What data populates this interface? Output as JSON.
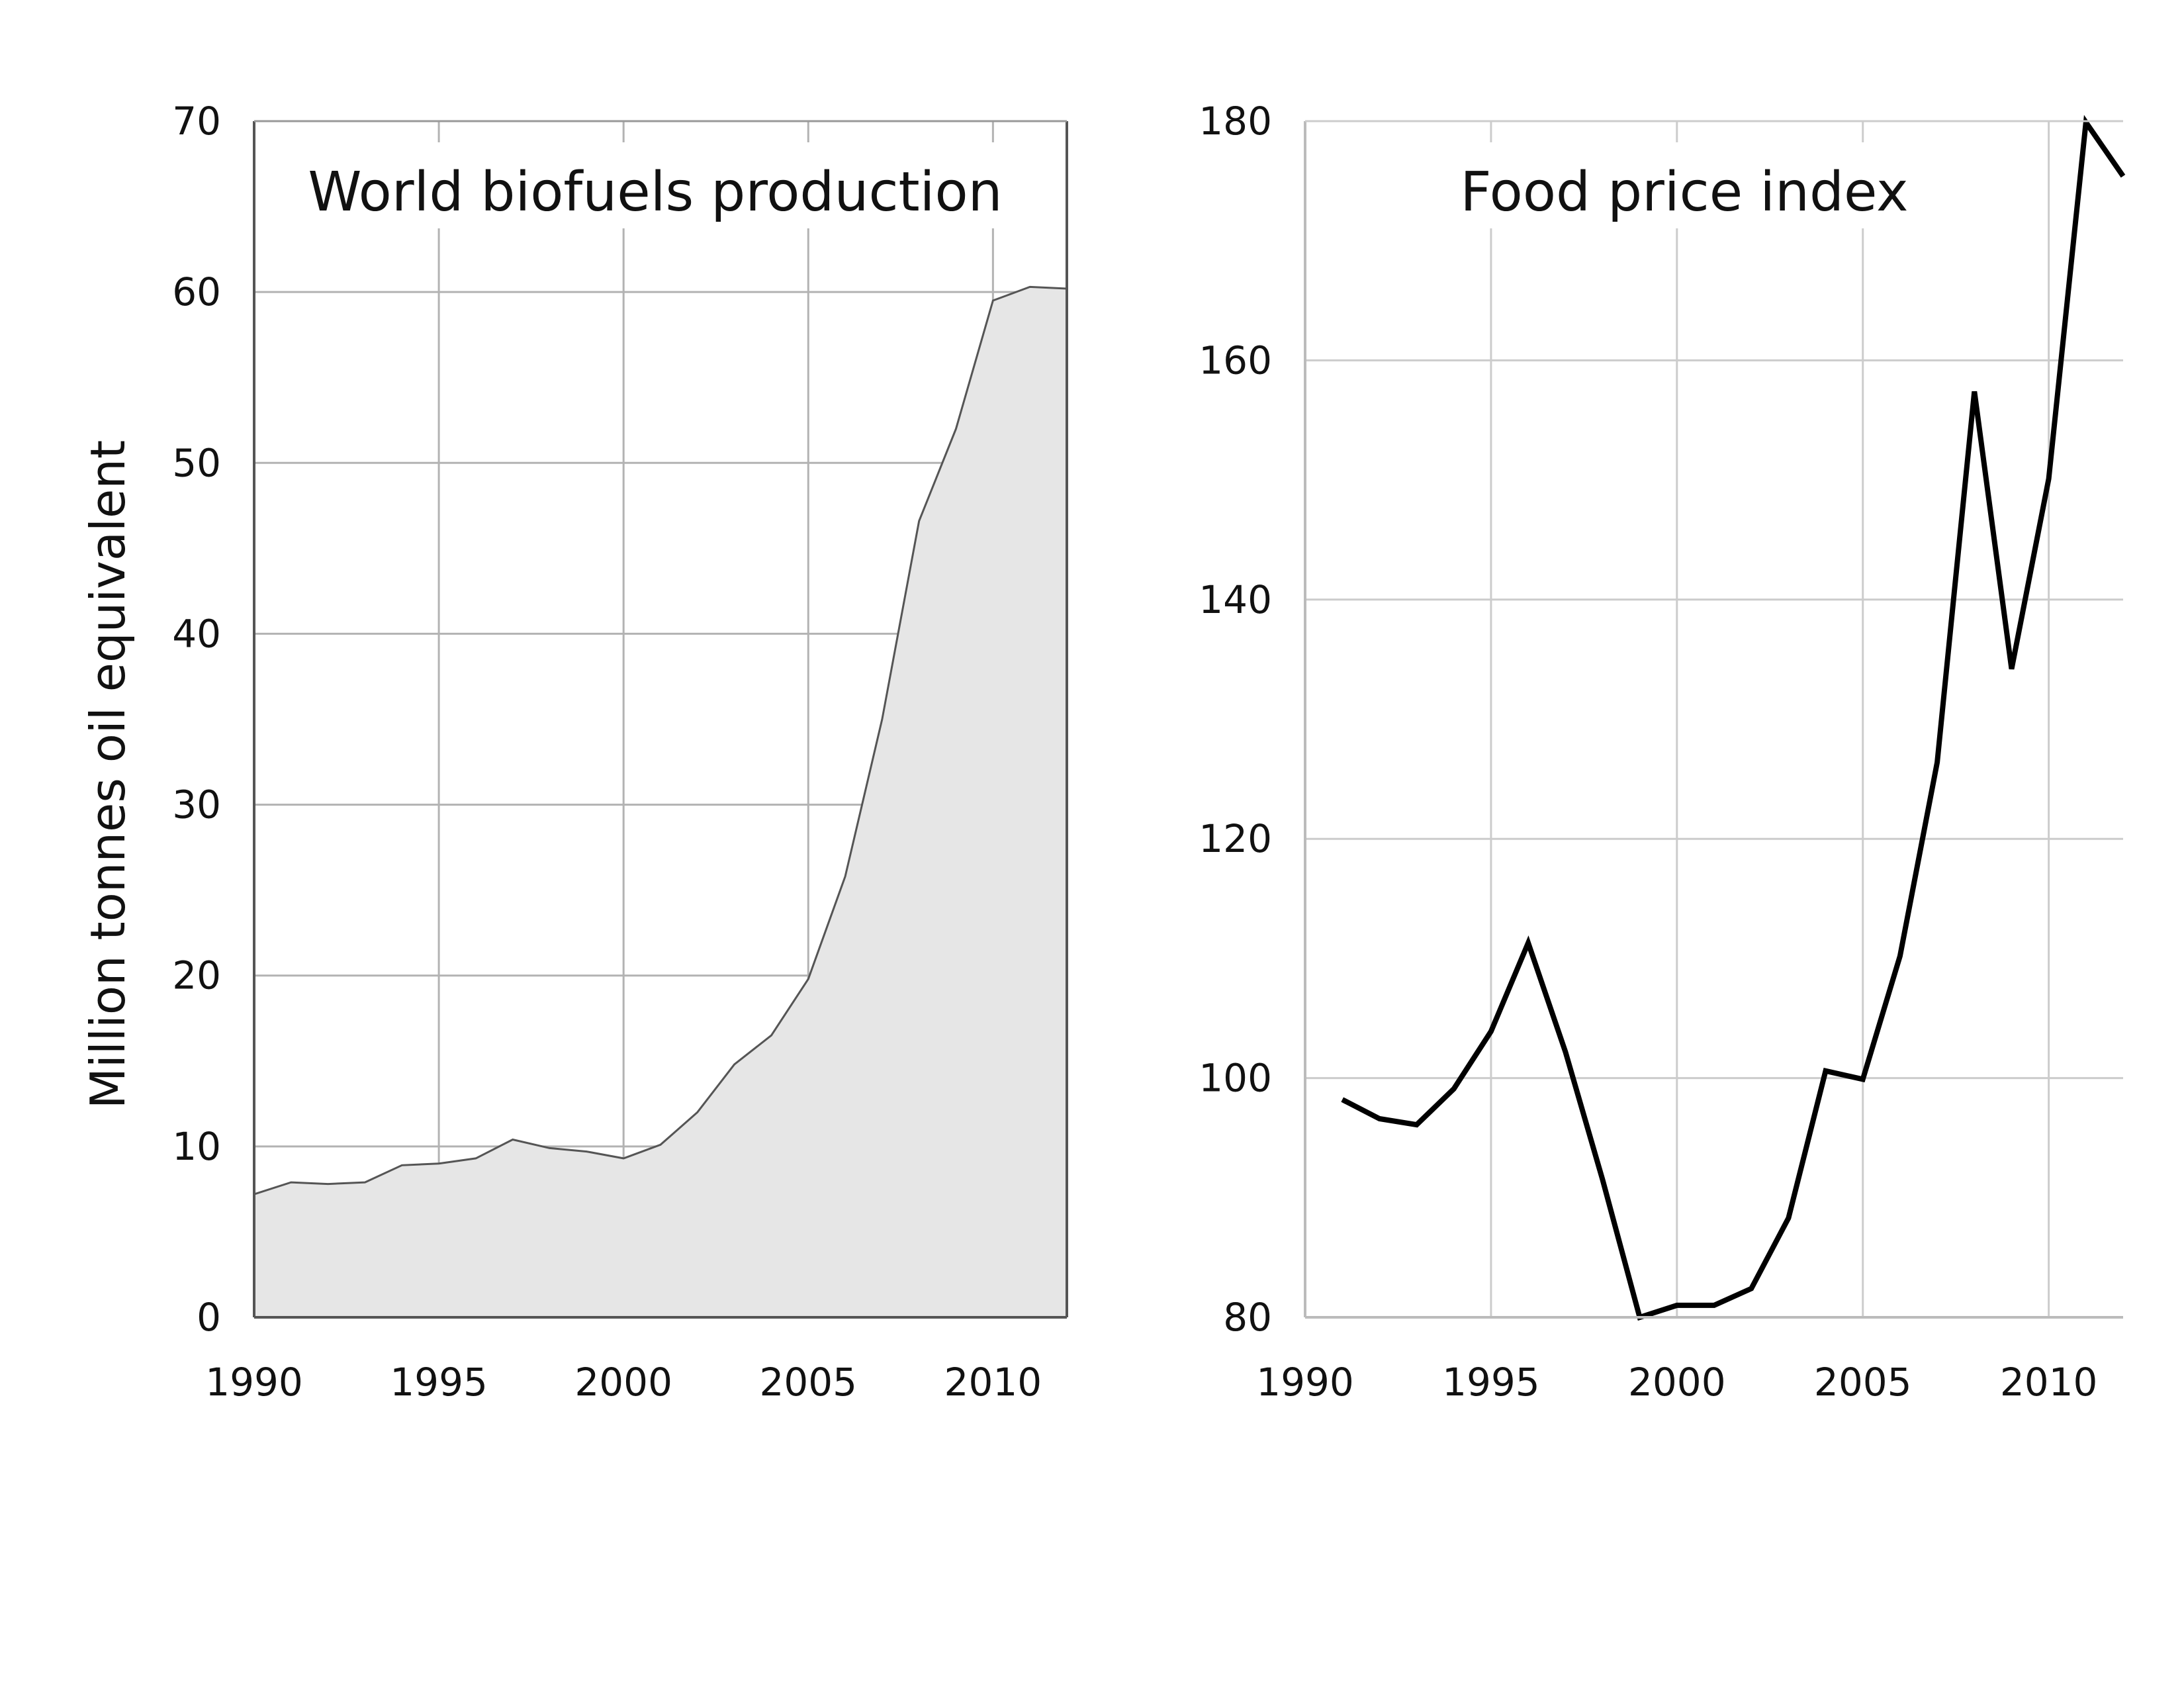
{
  "chart_data": [
    {
      "type": "area",
      "title": "World biofuels production",
      "xlabel": "",
      "ylabel": "Million tonnes oil equivalent",
      "xlim": [
        1990,
        2012
      ],
      "ylim": [
        0,
        70
      ],
      "grid": true,
      "fill_color": "#e6e6e6",
      "line_color": "#555555",
      "x_ticks": [
        "1990",
        "1995",
        "2000",
        "2005",
        "2010"
      ],
      "y_ticks": [
        "0",
        "10",
        "20",
        "30",
        "40",
        "50",
        "60",
        "70"
      ],
      "x": [
        1990,
        1991,
        1992,
        1993,
        1994,
        1995,
        1996,
        1997,
        1998,
        1999,
        2000,
        2001,
        2002,
        2003,
        2004,
        2005,
        2006,
        2007,
        2008,
        2009,
        2010,
        2011,
        2012
      ],
      "values": [
        7.2,
        7.9,
        7.8,
        7.9,
        8.9,
        9.0,
        9.3,
        10.4,
        9.9,
        9.7,
        9.3,
        10.1,
        12.0,
        14.8,
        16.5,
        19.8,
        25.8,
        35.0,
        46.6,
        52.0,
        59.5,
        60.3,
        60.2
      ]
    },
    {
      "type": "line",
      "title": "Food price index",
      "xlabel": "",
      "ylabel": "",
      "xlim": [
        1990,
        2012
      ],
      "ylim": [
        80,
        180
      ],
      "grid": true,
      "line_color": "#000000",
      "x_ticks": [
        "1990",
        "1995",
        "2000",
        "2005",
        "2010"
      ],
      "y_ticks": [
        "80",
        "100",
        "120",
        "140",
        "160",
        "180"
      ],
      "x": [
        1991,
        1992,
        1993,
        1994,
        1995,
        1996,
        1997,
        1998,
        1999,
        2000,
        2001,
        2002,
        2003,
        2004,
        2005,
        2006,
        2007,
        2008,
        2009,
        2010,
        2011,
        2012
      ],
      "values": [
        98.2,
        96.6,
        96.1,
        99.1,
        103.9,
        111.3,
        102.2,
        91.5,
        80.0,
        81.0,
        81.0,
        82.4,
        88.3,
        100.6,
        99.9,
        110.2,
        126.4,
        157.4,
        134.2,
        150.1,
        179.9,
        175.4
      ]
    }
  ]
}
